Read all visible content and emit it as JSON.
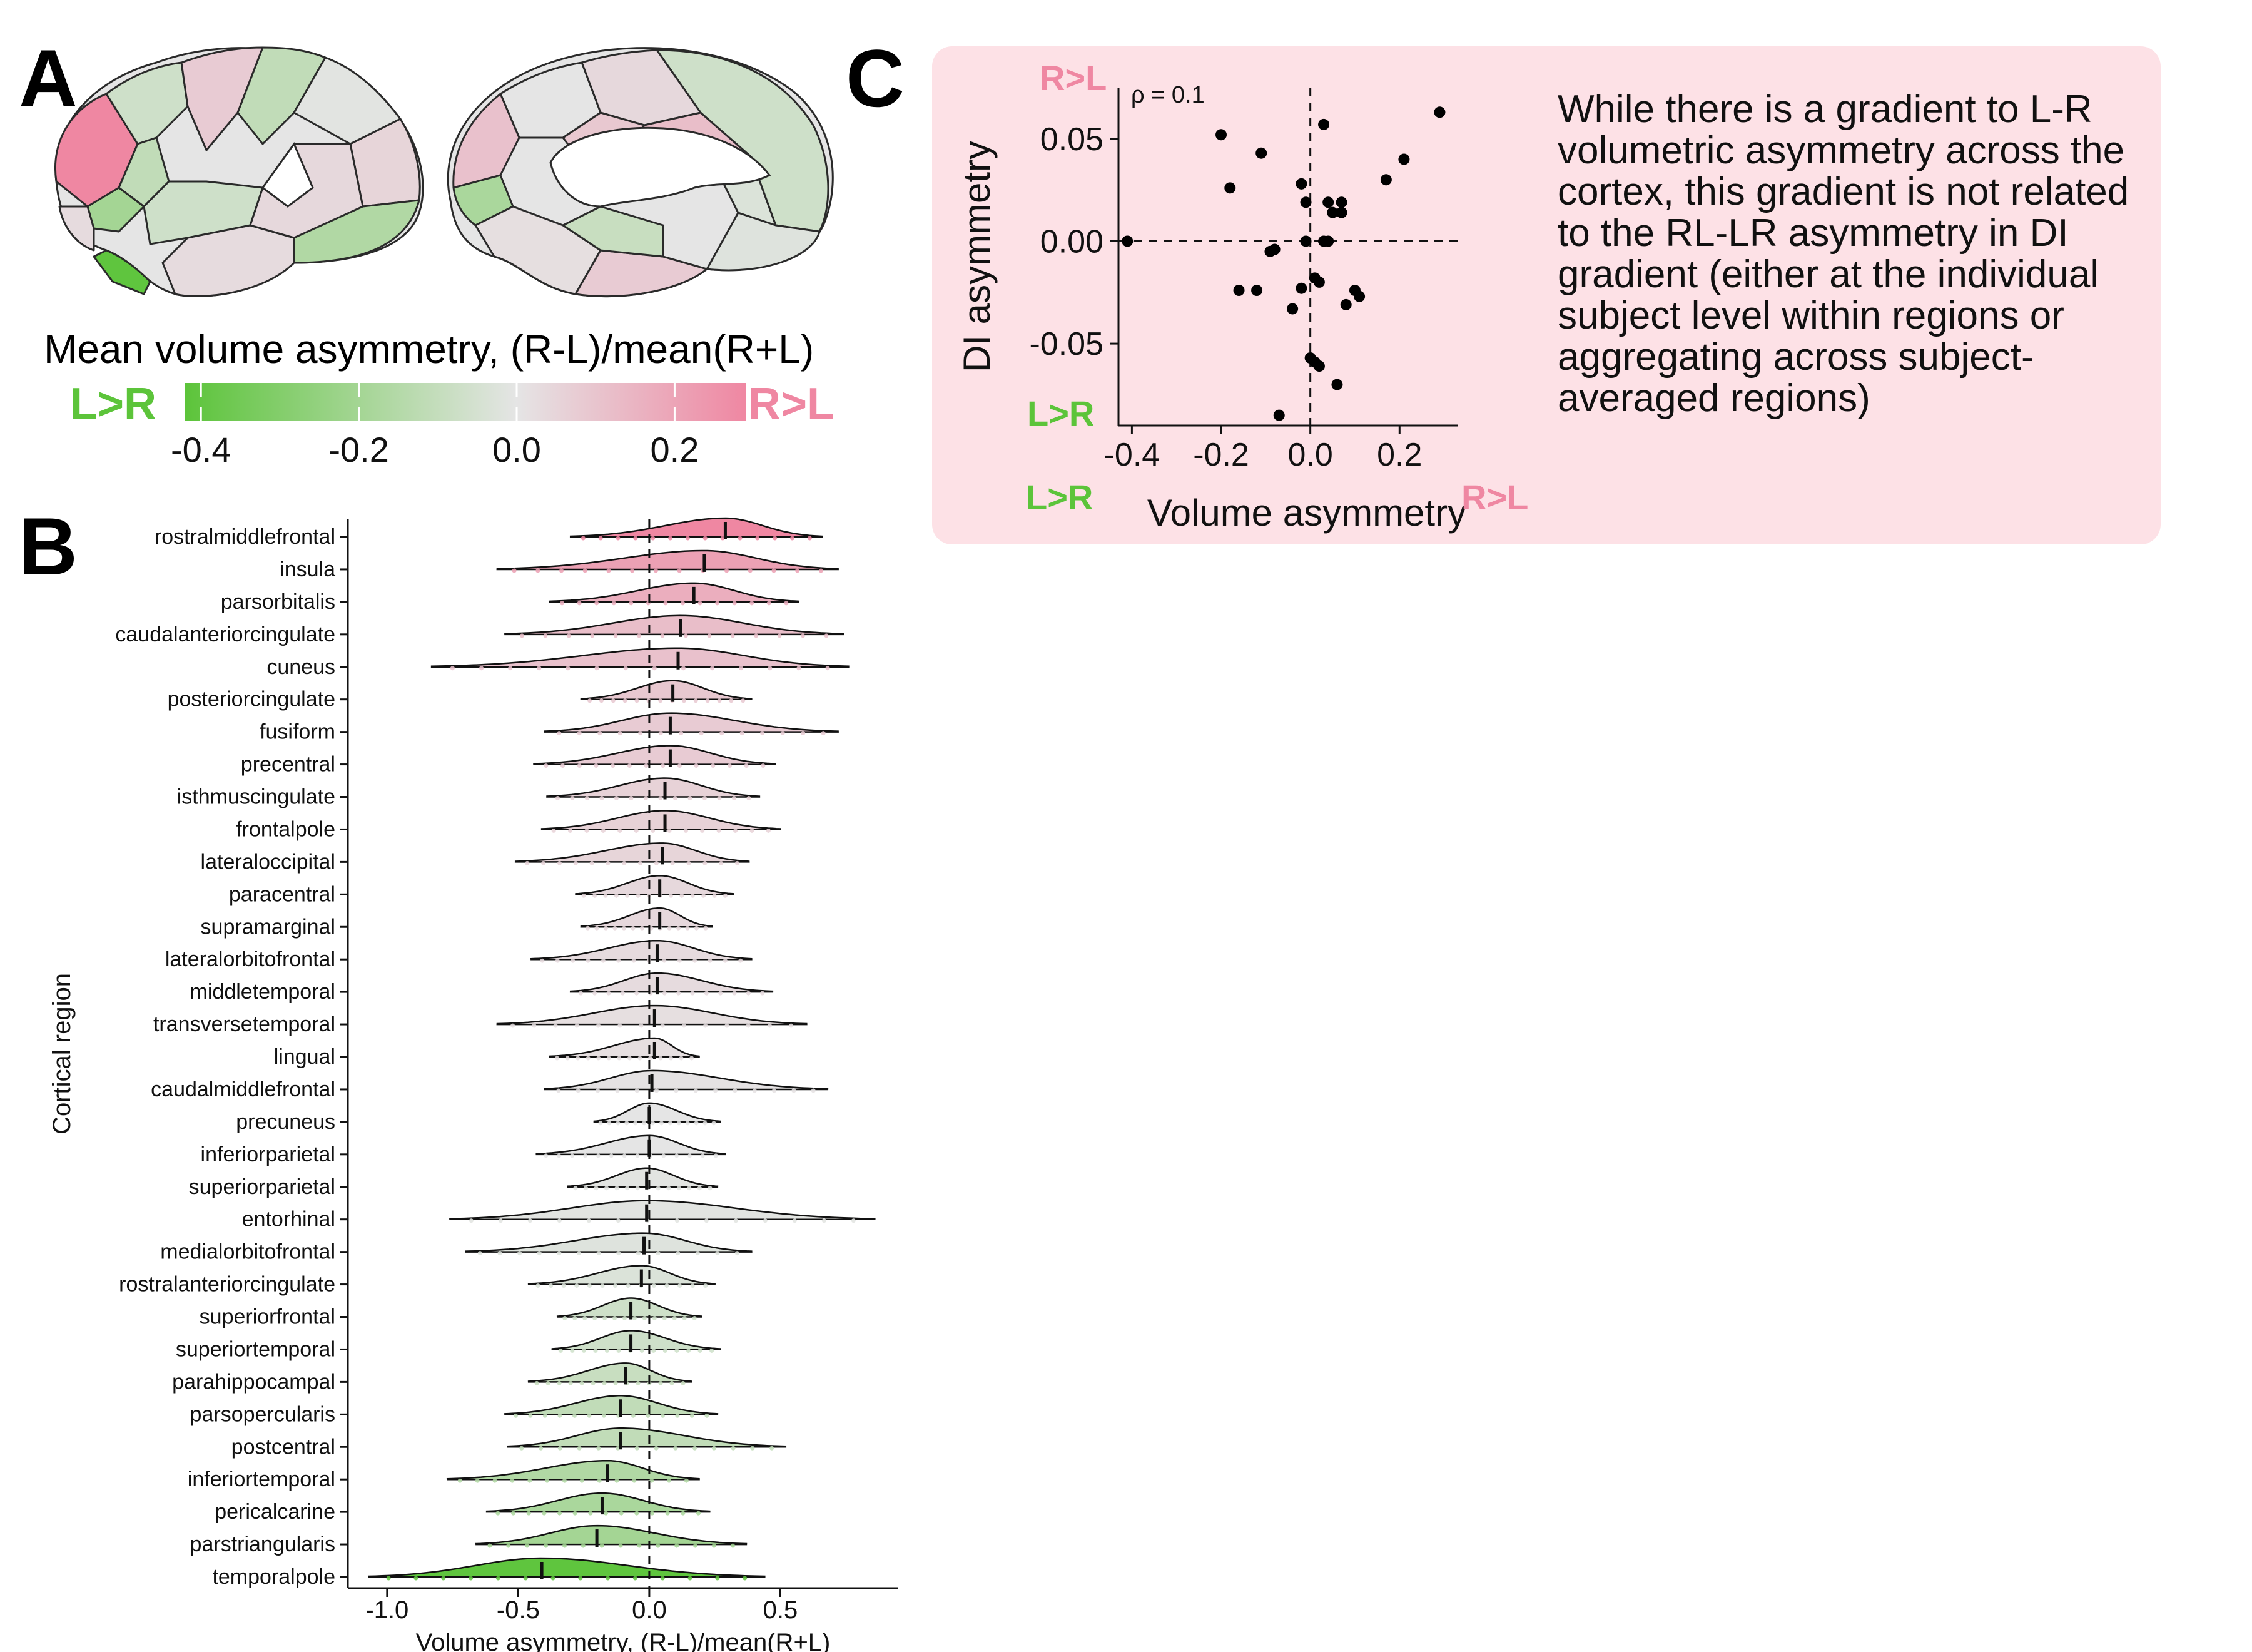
{
  "panel_labels": {
    "a": "A",
    "b": "B",
    "c": "C"
  },
  "colorbar": {
    "title": "Mean volume asymmetry, (R-L)/mean(R+L)",
    "left_label": "L>R",
    "right_label": "R>L",
    "ticks": [
      "-0.4",
      "-0.2",
      "0.0",
      "0.2"
    ],
    "range": [
      -0.42,
      0.29
    ],
    "colors": {
      "green": "#5cc43a",
      "neutral": "#e5e5e5",
      "pink": "#ef87a2"
    }
  },
  "panel_c_text": "While there is a gradient to L-R volumetric asymmetry across the cortex, this gradient is not related to the RL-LR asymmetry in DI gradient (either at the individual subject level within regions or aggregating across subject-averaged regions)",
  "chart_data": [
    {
      "type": "ridgeline",
      "panel": "B",
      "xlabel": "Volume asymmetry, (R-L)/mean(R+L)",
      "ylabel": "Cortical region",
      "xlim": [
        -1.15,
        0.95
      ],
      "xticks": [
        "-1.0",
        "-0.5",
        "0.0",
        "0.5"
      ],
      "xtick_values": [
        -1.0,
        -0.5,
        0.0,
        0.5
      ],
      "reference_line_x": 0,
      "regions": [
        {
          "name": "rostralmiddlefrontal",
          "mean": 0.29,
          "min": -0.3,
          "max": 0.66
        },
        {
          "name": "insula",
          "mean": 0.21,
          "min": -0.58,
          "max": 0.72
        },
        {
          "name": "parsorbitalis",
          "mean": 0.17,
          "min": -0.38,
          "max": 0.57
        },
        {
          "name": "caudalanteriorcingulate",
          "mean": 0.12,
          "min": -0.55,
          "max": 0.74
        },
        {
          "name": "cuneus",
          "mean": 0.11,
          "min": -0.83,
          "max": 0.76
        },
        {
          "name": "posteriorcingulate",
          "mean": 0.09,
          "min": -0.26,
          "max": 0.39
        },
        {
          "name": "fusiform",
          "mean": 0.08,
          "min": -0.4,
          "max": 0.72
        },
        {
          "name": "precentral",
          "mean": 0.08,
          "min": -0.44,
          "max": 0.48
        },
        {
          "name": "isthmuscingulate",
          "mean": 0.06,
          "min": -0.39,
          "max": 0.42
        },
        {
          "name": "frontalpole",
          "mean": 0.06,
          "min": -0.41,
          "max": 0.5
        },
        {
          "name": "lateraloccipital",
          "mean": 0.05,
          "min": -0.51,
          "max": 0.38
        },
        {
          "name": "paracentral",
          "mean": 0.04,
          "min": -0.28,
          "max": 0.32
        },
        {
          "name": "supramarginal",
          "mean": 0.04,
          "min": -0.26,
          "max": 0.24
        },
        {
          "name": "lateralorbitofrontal",
          "mean": 0.03,
          "min": -0.45,
          "max": 0.39
        },
        {
          "name": "middletemporal",
          "mean": 0.03,
          "min": -0.3,
          "max": 0.47
        },
        {
          "name": "transversetemporal",
          "mean": 0.02,
          "min": -0.58,
          "max": 0.6
        },
        {
          "name": "lingual",
          "mean": 0.02,
          "min": -0.38,
          "max": 0.19
        },
        {
          "name": "caudalmiddlefrontal",
          "mean": 0.01,
          "min": -0.4,
          "max": 0.68
        },
        {
          "name": "precuneus",
          "mean": 0.0,
          "min": -0.21,
          "max": 0.27
        },
        {
          "name": "inferiorparietal",
          "mean": 0.0,
          "min": -0.43,
          "max": 0.29
        },
        {
          "name": "superiorparietal",
          "mean": -0.01,
          "min": -0.31,
          "max": 0.26
        },
        {
          "name": "entorhinal",
          "mean": -0.01,
          "min": -0.76,
          "max": 0.86
        },
        {
          "name": "medialorbitofrontal",
          "mean": -0.02,
          "min": -0.7,
          "max": 0.39
        },
        {
          "name": "rostralanteriorcingulate",
          "mean": -0.03,
          "min": -0.46,
          "max": 0.25
        },
        {
          "name": "superiorfrontal",
          "mean": -0.07,
          "min": -0.35,
          "max": 0.2
        },
        {
          "name": "superiortemporal",
          "mean": -0.07,
          "min": -0.37,
          "max": 0.27
        },
        {
          "name": "parahippocampal",
          "mean": -0.09,
          "min": -0.46,
          "max": 0.16
        },
        {
          "name": "parsopercularis",
          "mean": -0.11,
          "min": -0.55,
          "max": 0.26
        },
        {
          "name": "postcentral",
          "mean": -0.11,
          "min": -0.54,
          "max": 0.52
        },
        {
          "name": "inferiortemporal",
          "mean": -0.16,
          "min": -0.77,
          "max": 0.19
        },
        {
          "name": "pericalcarine",
          "mean": -0.18,
          "min": -0.62,
          "max": 0.23
        },
        {
          "name": "parstriangularis",
          "mean": -0.2,
          "min": -0.66,
          "max": 0.37
        },
        {
          "name": "temporalpole",
          "mean": -0.41,
          "min": -1.07,
          "max": 0.44
        }
      ]
    },
    {
      "type": "scatter",
      "panel": "C",
      "xlabel": "Volume asymmetry",
      "ylabel": "DI asymmetry",
      "annotation": "ρ = 0.1",
      "x_left_label": "L>R",
      "x_right_label": "R>L",
      "y_top_label": "R>L",
      "y_bottom_label": "L>R",
      "xlim": [
        -0.43,
        0.33
      ],
      "ylim": [
        -0.09,
        0.075
      ],
      "xticks": [
        "-0.4",
        "-0.2",
        "0.0",
        "0.2"
      ],
      "xtick_values": [
        -0.4,
        -0.2,
        0.0,
        0.2
      ],
      "yticks": [
        "0.05",
        "0.00",
        "-0.05"
      ],
      "ytick_values": [
        0.05,
        0.0,
        -0.05
      ],
      "reference_lines": {
        "x": 0,
        "y": 0
      },
      "points": [
        {
          "x": -0.41,
          "y": 0.0
        },
        {
          "x": -0.2,
          "y": 0.052
        },
        {
          "x": -0.18,
          "y": 0.026
        },
        {
          "x": -0.16,
          "y": -0.024
        },
        {
          "x": -0.12,
          "y": -0.024
        },
        {
          "x": -0.11,
          "y": 0.043
        },
        {
          "x": -0.09,
          "y": -0.005
        },
        {
          "x": -0.08,
          "y": -0.004
        },
        {
          "x": -0.07,
          "y": -0.085
        },
        {
          "x": -0.04,
          "y": -0.033
        },
        {
          "x": -0.02,
          "y": -0.023
        },
        {
          "x": -0.02,
          "y": 0.028
        },
        {
          "x": -0.01,
          "y": 0.019
        },
        {
          "x": -0.01,
          "y": 0.0
        },
        {
          "x": 0.0,
          "y": -0.057
        },
        {
          "x": 0.01,
          "y": -0.059
        },
        {
          "x": 0.01,
          "y": -0.018
        },
        {
          "x": 0.02,
          "y": -0.02
        },
        {
          "x": 0.02,
          "y": -0.061
        },
        {
          "x": 0.03,
          "y": 0.0
        },
        {
          "x": 0.03,
          "y": 0.057
        },
        {
          "x": 0.04,
          "y": 0.0
        },
        {
          "x": 0.04,
          "y": 0.019
        },
        {
          "x": 0.05,
          "y": 0.014
        },
        {
          "x": 0.06,
          "y": -0.07
        },
        {
          "x": 0.07,
          "y": 0.019
        },
        {
          "x": 0.07,
          "y": 0.014
        },
        {
          "x": 0.08,
          "y": -0.031
        },
        {
          "x": 0.1,
          "y": -0.024
        },
        {
          "x": 0.11,
          "y": -0.027
        },
        {
          "x": 0.17,
          "y": 0.03
        },
        {
          "x": 0.21,
          "y": 0.04
        },
        {
          "x": 0.29,
          "y": 0.063
        }
      ]
    }
  ]
}
